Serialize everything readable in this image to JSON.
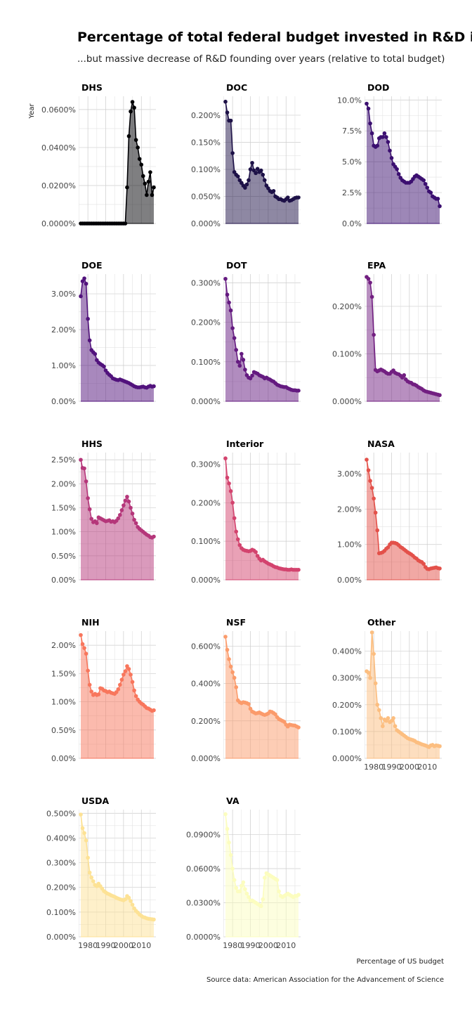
{
  "title": "Percentage of total federal budget invested in R&D in the US",
  "subtitle": "...but massive decrease of R&D founding over years (relative to total budget)",
  "y_axis_label": "Year",
  "x_axis_caption": "Percentage of US budget",
  "source": "Source data: American Association for the Advancement of Science",
  "x_ticks": [
    "1980",
    "1990",
    "2000",
    "2010"
  ],
  "colors": {
    "DHS": "#000004",
    "DOC": "#1d1147",
    "DOD": "#3b0f70",
    "DOE": "#51127c",
    "DOT": "#641a80",
    "EPA": "#721f81",
    "HHS": "#b5367a",
    "Interior": "#d3436e",
    "NASA": "#e3514a",
    "NIH": "#f8765c",
    "NSF": "#fb9b6b",
    "Other": "#fcbe80",
    "USDA": "#fde295",
    "VA": "#fcfdbf"
  },
  "chart_data": [
    {
      "type": "area",
      "agency": "DHS",
      "x_start": 1976,
      "x_end": 2017,
      "y_ticks": [
        "0.0000%",
        "0.0200%",
        "0.0400%",
        "0.0600%"
      ],
      "ylim": [
        0,
        0.067
      ],
      "values": [
        0,
        0,
        0,
        0,
        0,
        0,
        0,
        0,
        0,
        0,
        0,
        0,
        0,
        0,
        0,
        0,
        0,
        0,
        0,
        0,
        0,
        0,
        0,
        0,
        0,
        0,
        0.019,
        0.046,
        0.059,
        0.064,
        0.061,
        0.044,
        0.04,
        0.034,
        0.031,
        0.025,
        0.021,
        0.015,
        0.022,
        0.027,
        0.015,
        0.019
      ]
    },
    {
      "type": "area",
      "agency": "DOC",
      "x_start": 1976,
      "x_end": 2017,
      "y_ticks": [
        "0.000%",
        "0.050%",
        "0.100%",
        "0.150%",
        "0.200%"
      ],
      "ylim": [
        0,
        0.235
      ],
      "values": [
        0.225,
        0.205,
        0.19,
        0.19,
        0.13,
        0.095,
        0.09,
        0.087,
        0.08,
        0.075,
        0.07,
        0.066,
        0.072,
        0.08,
        0.1,
        0.112,
        0.098,
        0.093,
        0.101,
        0.095,
        0.098,
        0.09,
        0.08,
        0.07,
        0.065,
        0.06,
        0.058,
        0.06,
        0.05,
        0.048,
        0.045,
        0.045,
        0.043,
        0.042,
        0.045,
        0.048,
        0.042,
        0.043,
        0.045,
        0.047,
        0.048,
        0.048
      ]
    },
    {
      "type": "area",
      "agency": "DOD",
      "x_start": 1976,
      "x_end": 2017,
      "y_ticks": [
        "0.0%",
        "2.5%",
        "5.0%",
        "7.5%",
        "10.0%"
      ],
      "ylim": [
        0,
        10.3
      ],
      "values": [
        9.7,
        9.3,
        8.1,
        7.3,
        6.3,
        6.2,
        6.3,
        6.9,
        7.0,
        7.0,
        7.3,
        7.0,
        6.6,
        5.9,
        5.3,
        4.8,
        4.6,
        4.4,
        4.0,
        3.7,
        3.5,
        3.4,
        3.3,
        3.3,
        3.3,
        3.4,
        3.6,
        3.8,
        3.9,
        3.8,
        3.7,
        3.6,
        3.5,
        3.2,
        2.9,
        2.6,
        2.5,
        2.2,
        2.1,
        2.0,
        2.0,
        1.4
      ]
    },
    {
      "type": "area",
      "agency": "DOE",
      "x_start": 1976,
      "x_end": 2017,
      "y_ticks": [
        "0.00%",
        "1.00%",
        "2.00%",
        "3.00%"
      ],
      "ylim": [
        0,
        3.55
      ],
      "values": [
        2.93,
        3.35,
        3.43,
        3.28,
        2.3,
        1.7,
        1.43,
        1.37,
        1.32,
        1.15,
        1.08,
        1.04,
        1.01,
        0.97,
        0.86,
        0.79,
        0.74,
        0.7,
        0.64,
        0.62,
        0.6,
        0.59,
        0.61,
        0.59,
        0.57,
        0.55,
        0.53,
        0.51,
        0.48,
        0.45,
        0.42,
        0.4,
        0.39,
        0.39,
        0.4,
        0.41,
        0.39,
        0.38,
        0.41,
        0.43,
        0.41,
        0.42
      ]
    },
    {
      "type": "area",
      "agency": "DOT",
      "x_start": 1976,
      "x_end": 2017,
      "y_ticks": [
        "0.000%",
        "0.100%",
        "0.200%",
        "0.300%"
      ],
      "ylim": [
        0,
        0.322
      ],
      "values": [
        0.31,
        0.27,
        0.25,
        0.23,
        0.185,
        0.16,
        0.13,
        0.1,
        0.09,
        0.12,
        0.105,
        0.08,
        0.066,
        0.06,
        0.058,
        0.065,
        0.074,
        0.072,
        0.07,
        0.066,
        0.064,
        0.062,
        0.058,
        0.06,
        0.057,
        0.055,
        0.052,
        0.05,
        0.046,
        0.042,
        0.04,
        0.038,
        0.037,
        0.036,
        0.036,
        0.033,
        0.031,
        0.029,
        0.028,
        0.028,
        0.027,
        0.027
      ]
    },
    {
      "type": "area",
      "agency": "EPA",
      "x_start": 1976,
      "x_end": 2017,
      "y_ticks": [
        "0.000%",
        "0.100%",
        "0.200%"
      ],
      "ylim": [
        0,
        0.268
      ],
      "values": [
        0.262,
        0.258,
        0.25,
        0.22,
        0.14,
        0.066,
        0.063,
        0.065,
        0.067,
        0.065,
        0.063,
        0.06,
        0.058,
        0.058,
        0.062,
        0.065,
        0.06,
        0.058,
        0.057,
        0.054,
        0.05,
        0.055,
        0.046,
        0.042,
        0.04,
        0.039,
        0.036,
        0.035,
        0.033,
        0.03,
        0.028,
        0.026,
        0.023,
        0.021,
        0.02,
        0.019,
        0.018,
        0.017,
        0.016,
        0.015,
        0.014,
        0.013
      ]
    },
    {
      "type": "area",
      "agency": "HHS",
      "x_start": 1976,
      "x_end": 2017,
      "y_ticks": [
        "0.00%",
        "0.50%",
        "1.00%",
        "1.50%",
        "2.00%",
        "2.50%"
      ],
      "ylim": [
        0,
        2.65
      ],
      "values": [
        2.5,
        2.33,
        2.32,
        2.05,
        1.7,
        1.47,
        1.27,
        1.2,
        1.22,
        1.18,
        1.3,
        1.28,
        1.26,
        1.24,
        1.22,
        1.23,
        1.24,
        1.21,
        1.22,
        1.2,
        1.23,
        1.28,
        1.35,
        1.45,
        1.55,
        1.65,
        1.73,
        1.63,
        1.5,
        1.38,
        1.25,
        1.18,
        1.1,
        1.06,
        1.03,
        1.0,
        0.97,
        0.94,
        0.92,
        0.89,
        0.88,
        0.9
      ]
    },
    {
      "type": "area",
      "agency": "Interior",
      "x_start": 1976,
      "x_end": 2017,
      "y_ticks": [
        "0.000%",
        "0.100%",
        "0.200%",
        "0.300%"
      ],
      "ylim": [
        0,
        0.33
      ],
      "values": [
        0.315,
        0.265,
        0.25,
        0.23,
        0.2,
        0.16,
        0.125,
        0.105,
        0.09,
        0.082,
        0.078,
        0.076,
        0.075,
        0.074,
        0.075,
        0.078,
        0.076,
        0.072,
        0.062,
        0.055,
        0.05,
        0.052,
        0.048,
        0.045,
        0.042,
        0.04,
        0.038,
        0.035,
        0.033,
        0.032,
        0.03,
        0.029,
        0.028,
        0.027,
        0.027,
        0.026,
        0.026,
        0.027,
        0.026,
        0.026,
        0.026,
        0.026
      ]
    },
    {
      "type": "area",
      "agency": "NASA",
      "x_start": 1976,
      "x_end": 2017,
      "y_ticks": [
        "0.00%",
        "1.00%",
        "2.00%",
        "3.00%"
      ],
      "ylim": [
        0,
        3.6
      ],
      "values": [
        3.4,
        3.1,
        2.8,
        2.6,
        2.3,
        1.9,
        1.4,
        0.75,
        0.76,
        0.78,
        0.82,
        0.88,
        0.92,
        1.0,
        1.05,
        1.05,
        1.04,
        1.02,
        0.98,
        0.93,
        0.9,
        0.86,
        0.82,
        0.78,
        0.75,
        0.72,
        0.68,
        0.63,
        0.6,
        0.55,
        0.52,
        0.5,
        0.45,
        0.36,
        0.31,
        0.3,
        0.32,
        0.33,
        0.34,
        0.35,
        0.33,
        0.32
      ]
    },
    {
      "type": "area",
      "agency": "NIH",
      "x_start": 1976,
      "x_end": 2017,
      "y_ticks": [
        "0.00%",
        "0.50%",
        "1.00%",
        "1.50%",
        "2.00%"
      ],
      "ylim": [
        0,
        2.25
      ],
      "values": [
        2.18,
        2.02,
        1.95,
        1.85,
        1.55,
        1.3,
        1.18,
        1.12,
        1.14,
        1.12,
        1.13,
        1.24,
        1.23,
        1.2,
        1.19,
        1.17,
        1.18,
        1.16,
        1.15,
        1.14,
        1.17,
        1.22,
        1.3,
        1.39,
        1.48,
        1.54,
        1.63,
        1.58,
        1.48,
        1.35,
        1.2,
        1.1,
        1.04,
        1.0,
        0.97,
        0.95,
        0.92,
        0.89,
        0.88,
        0.86,
        0.84,
        0.85
      ]
    },
    {
      "type": "area",
      "agency": "NSF",
      "x_start": 1976,
      "x_end": 2017,
      "y_ticks": [
        "0.000%",
        "0.200%",
        "0.400%",
        "0.600%"
      ],
      "ylim": [
        0,
        0.68
      ],
      "values": [
        0.65,
        0.58,
        0.53,
        0.49,
        0.46,
        0.43,
        0.38,
        0.31,
        0.3,
        0.295,
        0.3,
        0.298,
        0.295,
        0.29,
        0.265,
        0.25,
        0.245,
        0.24,
        0.242,
        0.245,
        0.24,
        0.235,
        0.232,
        0.235,
        0.24,
        0.25,
        0.248,
        0.242,
        0.235,
        0.22,
        0.21,
        0.205,
        0.2,
        0.195,
        0.18,
        0.17,
        0.18,
        0.178,
        0.176,
        0.175,
        0.17,
        0.165
      ]
    },
    {
      "type": "area",
      "agency": "Other",
      "x_start": 1976,
      "x_end": 2017,
      "y_ticks": [
        "0.000%",
        "0.100%",
        "0.200%",
        "0.300%",
        "0.400%"
      ],
      "ylim": [
        0,
        0.475
      ],
      "values": [
        0.325,
        0.32,
        0.3,
        0.47,
        0.39,
        0.28,
        0.2,
        0.18,
        0.15,
        0.12,
        0.145,
        0.14,
        0.15,
        0.135,
        0.14,
        0.15,
        0.12,
        0.105,
        0.1,
        0.095,
        0.09,
        0.085,
        0.08,
        0.075,
        0.072,
        0.07,
        0.068,
        0.065,
        0.06,
        0.058,
        0.055,
        0.052,
        0.05,
        0.048,
        0.045,
        0.042,
        0.048,
        0.05,
        0.045,
        0.048,
        0.047,
        0.045
      ]
    },
    {
      "type": "area",
      "agency": "USDA",
      "x_start": 1976,
      "x_end": 2017,
      "y_ticks": [
        "0.000%",
        "0.100%",
        "0.200%",
        "0.300%",
        "0.400%",
        "0.500%"
      ],
      "ylim": [
        0,
        0.515
      ],
      "values": [
        0.495,
        0.44,
        0.42,
        0.39,
        0.32,
        0.26,
        0.24,
        0.225,
        0.21,
        0.205,
        0.215,
        0.205,
        0.195,
        0.185,
        0.18,
        0.175,
        0.172,
        0.168,
        0.165,
        0.162,
        0.158,
        0.155,
        0.152,
        0.15,
        0.148,
        0.152,
        0.165,
        0.158,
        0.145,
        0.13,
        0.115,
        0.105,
        0.098,
        0.09,
        0.085,
        0.08,
        0.078,
        0.075,
        0.073,
        0.072,
        0.071,
        0.07
      ]
    },
    {
      "type": "area",
      "agency": "VA",
      "x_start": 1976,
      "x_end": 2017,
      "y_ticks": [
        "0.0000%",
        "0.0300%",
        "0.0600%",
        "0.0900%"
      ],
      "ylim": [
        0,
        0.112
      ],
      "values": [
        0.108,
        0.095,
        0.083,
        0.072,
        0.06,
        0.05,
        0.043,
        0.04,
        0.04,
        0.045,
        0.048,
        0.042,
        0.038,
        0.035,
        0.032,
        0.032,
        0.031,
        0.03,
        0.029,
        0.028,
        0.027,
        0.033,
        0.052,
        0.056,
        0.055,
        0.054,
        0.053,
        0.052,
        0.051,
        0.05,
        0.04,
        0.036,
        0.035,
        0.036,
        0.037,
        0.038,
        0.037,
        0.036,
        0.035,
        0.036,
        0.036,
        0.037
      ]
    }
  ]
}
